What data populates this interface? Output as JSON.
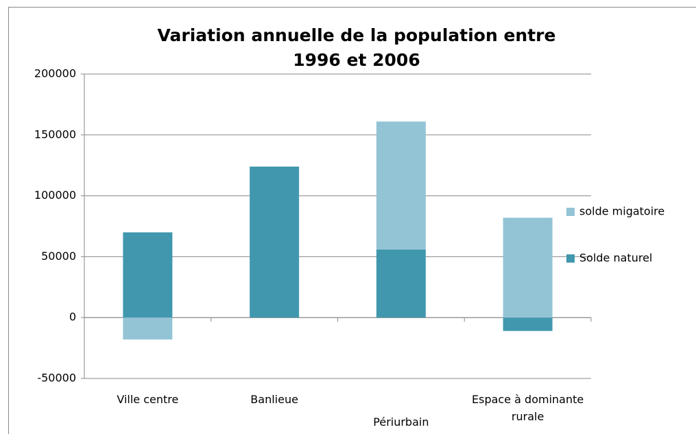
{
  "chart_data": {
    "type": "stacked_bar",
    "title": "Variation annuelle  de la population entre 1996 et 2006",
    "categories": [
      "Ville centre",
      "Banlieue",
      "Périurbain",
      "Espace à dominante rurale"
    ],
    "series": [
      {
        "name": "Solde naturel",
        "color": "#4198ae",
        "values": [
          70000,
          124000,
          56000,
          -11000
        ]
      },
      {
        "name": "solde migatoire",
        "color": "#93c4d6",
        "values": [
          -18000,
          0,
          105000,
          82000
        ]
      }
    ],
    "ylim": [
      -50000,
      200000
    ],
    "yticks": [
      -50000,
      0,
      50000,
      100000,
      150000,
      200000
    ],
    "grid": true,
    "legend": "right"
  }
}
